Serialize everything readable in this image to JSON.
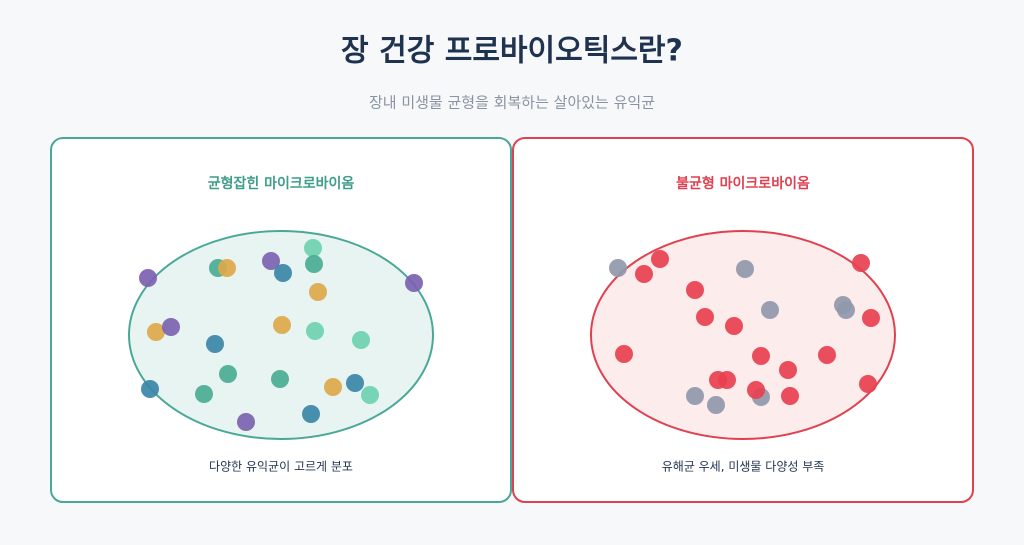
{
  "header": {
    "title": "장 건강 프로바이오틱스란?",
    "subtitle": "장내 미생물 균형을 회복하는 살아있는 유익균"
  },
  "panels": [
    {
      "title": "균형잡힌 마이크로바이옴",
      "caption": "다양한 유익균이 고르게 분포"
    },
    {
      "title": "불균형 마이크로바이옴",
      "caption": "유해균 우세, 미생물 다양성 부족"
    }
  ]
}
